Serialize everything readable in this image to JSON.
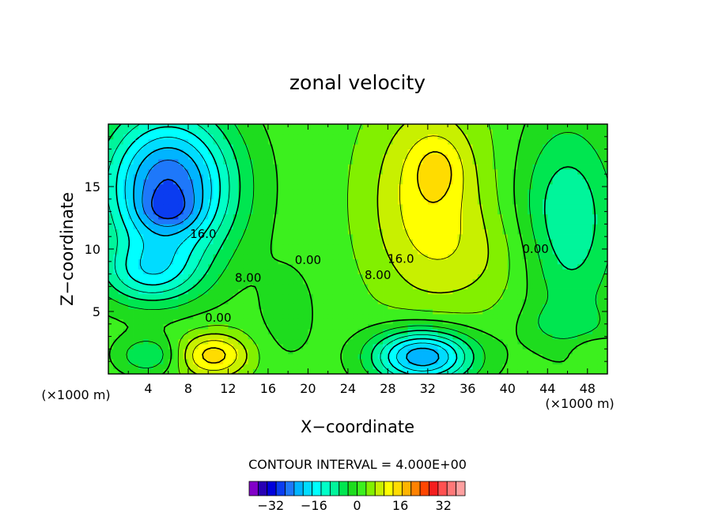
{
  "chart_data": {
    "type": "heatmap",
    "title": "zonal velocity",
    "xlabel": "X−coordinate",
    "ylabel": "Z−coordinate",
    "x_unit": "(×1000 m)",
    "z_unit": "(×1000 m)",
    "xlim": [
      0,
      50
    ],
    "ylim": [
      0,
      20
    ],
    "x_ticks": [
      4,
      8,
      12,
      16,
      20,
      24,
      28,
      32,
      36,
      40,
      44,
      48
    ],
    "x_tick_labels": [
      "4",
      "8",
      "12",
      "16",
      "20",
      "24",
      "28",
      "32",
      "36",
      "40",
      "44",
      "48"
    ],
    "y_ticks": [
      5,
      10,
      15
    ],
    "y_tick_labels": [
      "5",
      "10",
      "15"
    ],
    "contour_interval_text": "CONTOUR INTERVAL = 4.000E+00",
    "contour_interval": 4,
    "contour_labels": [
      {
        "text": "16.0",
        "x": 9.5,
        "z": 11.2
      },
      {
        "text": "8.00",
        "x": 14.0,
        "z": 7.7
      },
      {
        "text": "0.00",
        "x": 11.0,
        "z": 4.5
      },
      {
        "text": "0.00",
        "x": 20.0,
        "z": 9.1
      },
      {
        "text": "16.0",
        "x": 29.3,
        "z": 9.2
      },
      {
        "text": "8.00",
        "x": 27.0,
        "z": 7.9
      },
      {
        "text": "0.00",
        "x": 42.8,
        "z": 10.0
      }
    ],
    "colorbar": {
      "min": -40,
      "max": 40,
      "step": 4,
      "tick_values": [
        -32,
        -16,
        0,
        16,
        32
      ],
      "tick_labels": [
        "−32",
        "−16",
        "0",
        "16",
        "32"
      ],
      "colors": [
        "#8200c8",
        "#2800b4",
        "#0000dc",
        "#0a3cf0",
        "#1e78fa",
        "#00b4ff",
        "#00dcff",
        "#00ffff",
        "#00ffc8",
        "#00f59b",
        "#00e650",
        "#1edc1e",
        "#3cf01e",
        "#82f000",
        "#c8f000",
        "#ffff00",
        "#ffdc00",
        "#ffb400",
        "#ff8200",
        "#ff4600",
        "#f51e1e",
        "#ff5050",
        "#ff7878",
        "#ffa0a0"
      ]
    },
    "field_features": [
      {
        "x": 6,
        "z": 18.5,
        "value": -22
      },
      {
        "x": 6,
        "z": 13,
        "value": -26
      },
      {
        "x": 2,
        "z": 9,
        "value": -7
      },
      {
        "x": 30.5,
        "z": 16,
        "value": 20
      },
      {
        "x": 33,
        "z": 16.5,
        "value": 26
      },
      {
        "x": 31.5,
        "z": 1.4,
        "value": -26
      },
      {
        "x": 9.5,
        "z": 1.6,
        "value": 14
      },
      {
        "x": 12,
        "z": 1.6,
        "value": 20
      },
      {
        "x": 46,
        "z": 9,
        "value": -8
      },
      {
        "x": 48.5,
        "z": 2.2,
        "value": 6
      }
    ]
  }
}
